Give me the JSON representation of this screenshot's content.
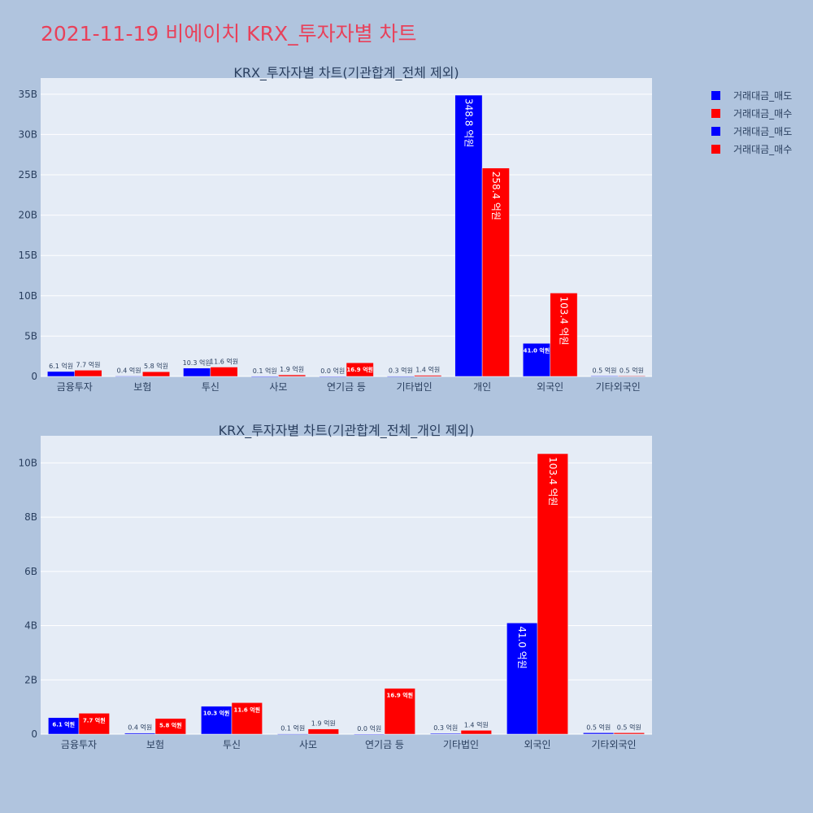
{
  "page": {
    "title": "2021-11-19 비에이치 KRX_투자자별 차트"
  },
  "legend": [
    {
      "label": "거래대금_매도",
      "color": "#0000ff"
    },
    {
      "label": "거래대금_매수",
      "color": "#ff0000"
    },
    {
      "label": "거래대금_매도",
      "color": "#0000ff"
    },
    {
      "label": "거래대금_매수",
      "color": "#ff0000"
    }
  ],
  "chart_data": [
    {
      "type": "bar",
      "title": "KRX_투자자별 차트(기관합계_전체 제외)",
      "categories": [
        "금융투자",
        "보험",
        "투신",
        "사모",
        "연기금 등",
        "기타법인",
        "개인",
        "외국인",
        "기타외국인"
      ],
      "ylim": [
        0,
        37000000000
      ],
      "yticks": [
        0,
        5000000000,
        10000000000,
        15000000000,
        20000000000,
        25000000000,
        30000000000,
        35000000000
      ],
      "ytick_labels": [
        "0",
        "5B",
        "10B",
        "15B",
        "20B",
        "25B",
        "30B",
        "35B"
      ],
      "grid": true,
      "series": [
        {
          "name": "거래대금_매도",
          "color": "#0000ff",
          "values": [
            610000000,
            40000000,
            1030000000,
            10000000,
            0,
            30000000,
            34880000000,
            4100000000,
            50000000
          ],
          "labels": [
            "6.1 억원",
            "0.4 억원",
            "10.3 억원",
            "0.1 억원",
            "0.0 억원",
            "0.3 억원",
            "348.8 억원",
            "41.0 억원",
            "0.5 억원"
          ]
        },
        {
          "name": "거래대금_매수",
          "color": "#ff0000",
          "values": [
            770000000,
            580000000,
            1160000000,
            190000000,
            1690000000,
            140000000,
            25840000000,
            10340000000,
            50000000
          ],
          "labels": [
            "7.7 억원",
            "5.8 억원",
            "11.6 억원",
            "1.9 억원",
            "16.9 억원",
            "1.4 억원",
            "258.4 억원",
            "103.4 억원",
            "0.5 억원"
          ]
        }
      ]
    },
    {
      "type": "bar",
      "title": "KRX_투자자별 차트(기관합계_전체_개인 제외)",
      "categories": [
        "금융투자",
        "보험",
        "투신",
        "사모",
        "연기금 등",
        "기타법인",
        "외국인",
        "기타외국인"
      ],
      "ylim": [
        0,
        11000000000
      ],
      "yticks": [
        0,
        2000000000,
        4000000000,
        6000000000,
        8000000000,
        10000000000
      ],
      "ytick_labels": [
        "0",
        "2B",
        "4B",
        "6B",
        "8B",
        "10B"
      ],
      "grid": true,
      "series": [
        {
          "name": "거래대금_매도",
          "color": "#0000ff",
          "values": [
            610000000,
            40000000,
            1030000000,
            10000000,
            0,
            30000000,
            4100000000,
            50000000
          ],
          "labels": [
            "6.1 억원",
            "0.4 억원",
            "10.3 억원",
            "0.1 억원",
            "0.0 억원",
            "0.3 억원",
            "41.0 억원",
            "0.5 억원"
          ]
        },
        {
          "name": "거래대금_매수",
          "color": "#ff0000",
          "values": [
            770000000,
            580000000,
            1160000000,
            190000000,
            1690000000,
            140000000,
            10340000000,
            50000000
          ],
          "labels": [
            "7.7 억원",
            "5.8 억원",
            "11.6 억원",
            "1.9 억원",
            "16.9 억원",
            "1.4 억원",
            "103.4 억원",
            "0.5 억원"
          ]
        }
      ]
    }
  ]
}
